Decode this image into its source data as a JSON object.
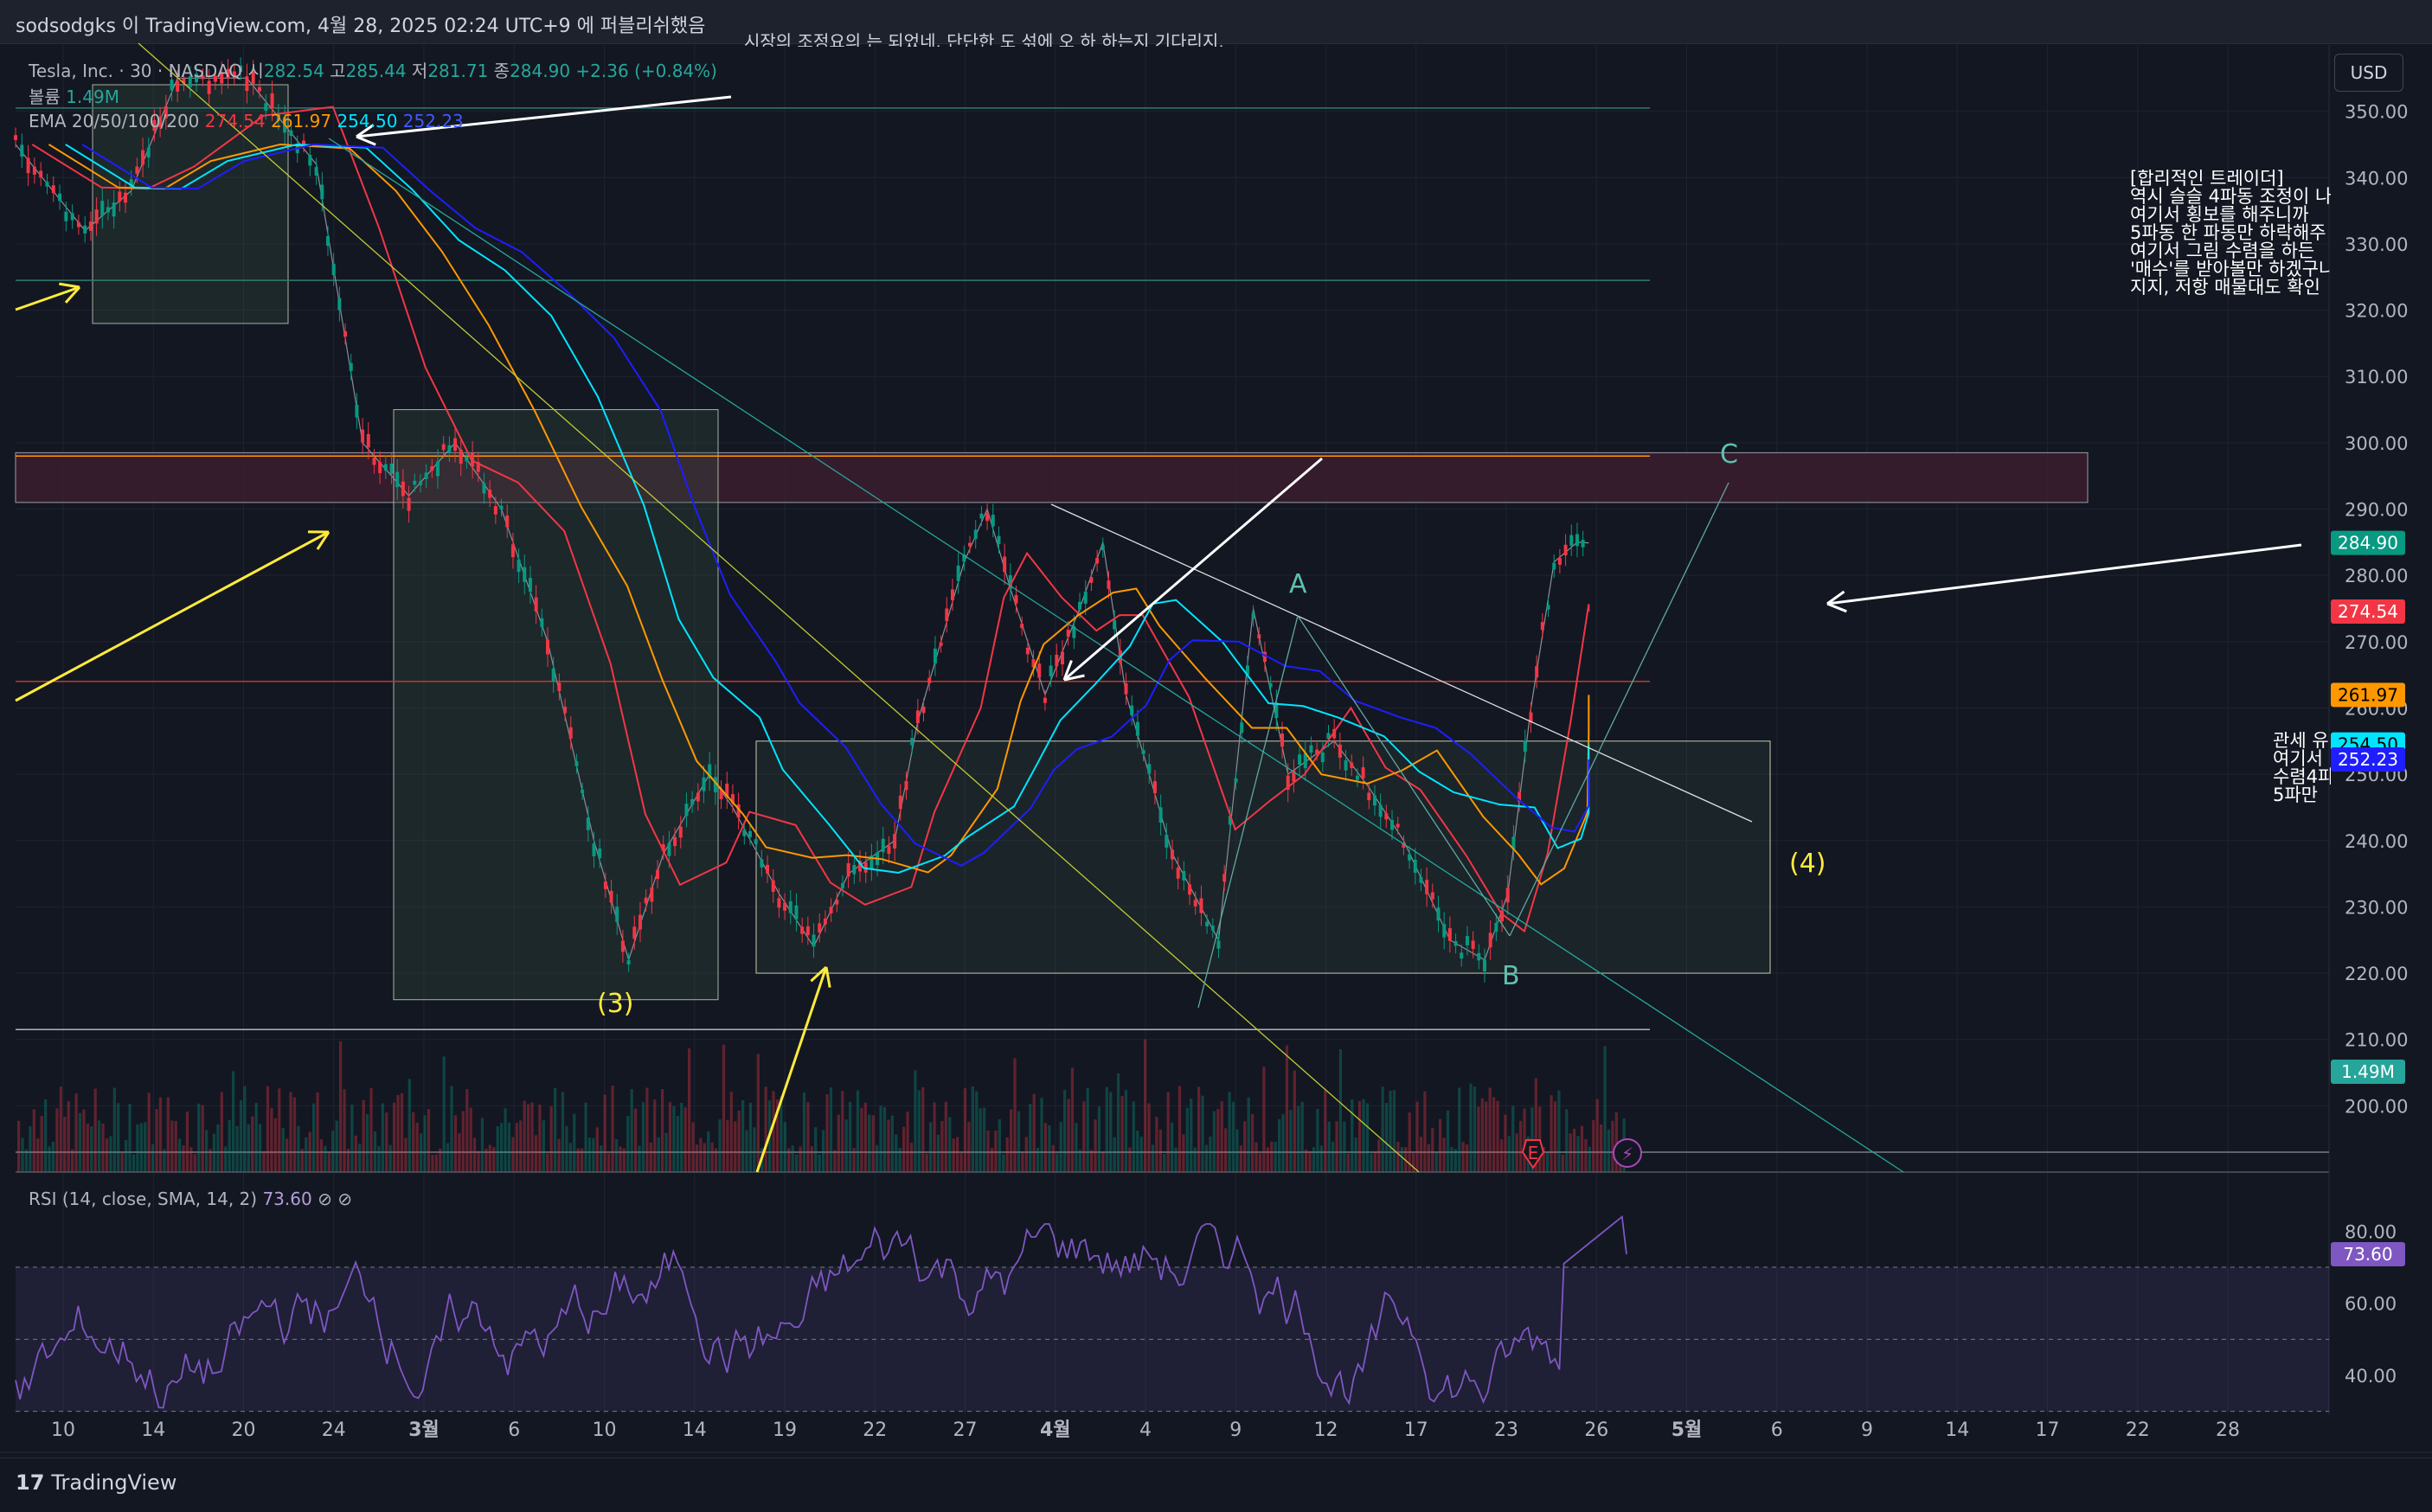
{
  "header": {
    "publisher_line": "sodsodgks 이 TradingView.com, 4월 28, 2025 02:24 UTC+9 에 퍼블리쉬했음"
  },
  "top_fragment": "시장의 조정요의 는 되었네. 단단한 도 섞에 오 하 하는지 기다리지.",
  "legend": {
    "symbol": "Tesla, Inc. · 30 · NASDAQ",
    "o_label": "시",
    "o_val": "282.54",
    "h_label": "고",
    "h_val": "285.44",
    "l_label": "저",
    "l_val": "281.71",
    "c_label": "종",
    "c_val": "284.90",
    "chg": "+2.36 (+0.84%)",
    "vol_label": "볼륨",
    "vol_val": "1.49M",
    "ema_label": "EMA 20/50/100/200",
    "ema20": "274.54",
    "ema50": "261.97",
    "ema100": "254.50",
    "ema200": "252.23",
    "rsi_label": "RSI (14, close, SMA, 14, 2)",
    "rsi_val": "73.60"
  },
  "currency": "USD",
  "note_right": "[합리적인 트레이더]\n역시 슬슬 4파동 조정이 나\n여기서 횡보를 해주니까 \n5파동 한 파동만 하락해주\n여기서 그림 수렴을 하든\n'매수'를 받아볼만 하겠구나\n지지, 저항 매물대도 확인",
  "note_mid": "관세 유\n여기서\n수렴4파\n5파만 ",
  "wave_labels": {
    "A": "A",
    "B": "B",
    "C": "C",
    "w3": "(3)",
    "w4": "(4)"
  },
  "event_icons": {
    "earnings": "E",
    "dividend": "⚡"
  },
  "footer_logo": "TradingView",
  "chart_data": {
    "type": "candlestick",
    "symbol": "Tesla, Inc.",
    "interval": "30",
    "exchange": "NASDAQ",
    "last_price": 284.9,
    "ylim": [
      190,
      360
    ],
    "y_ticks": [
      200,
      210,
      220,
      230,
      240,
      250,
      260,
      270,
      280,
      290,
      300,
      310,
      320,
      330,
      340,
      350
    ],
    "x_ticks": [
      "10",
      "14",
      "20",
      "24",
      "3월",
      "6",
      "10",
      "14",
      "19",
      "22",
      "27",
      "4월",
      "4",
      "9",
      "12",
      "17",
      "23",
      "26",
      "5월",
      "6",
      "9",
      "14",
      "17",
      "22",
      "28"
    ],
    "price_path": [
      [
        0,
        345
      ],
      [
        0.03,
        332
      ],
      [
        0.05,
        338
      ],
      [
        0.07,
        355
      ],
      [
        0.1,
        355
      ],
      [
        0.13,
        342
      ],
      [
        0.15,
        300
      ],
      [
        0.17,
        292
      ],
      [
        0.19,
        300
      ],
      [
        0.21,
        290
      ],
      [
        0.23,
        270
      ],
      [
        0.25,
        240
      ],
      [
        0.265,
        222
      ],
      [
        0.28,
        238
      ],
      [
        0.3,
        250
      ],
      [
        0.31,
        245
      ],
      [
        0.33,
        232
      ],
      [
        0.345,
        224
      ],
      [
        0.36,
        235
      ],
      [
        0.38,
        240
      ],
      [
        0.39,
        258
      ],
      [
        0.41,
        282
      ],
      [
        0.42,
        290
      ],
      [
        0.43,
        278
      ],
      [
        0.445,
        262
      ],
      [
        0.46,
        275
      ],
      [
        0.47,
        285
      ],
      [
        0.48,
        262
      ],
      [
        0.5,
        238
      ],
      [
        0.52,
        225
      ],
      [
        0.535,
        275
      ],
      [
        0.55,
        250
      ],
      [
        0.57,
        255
      ],
      [
        0.585,
        248
      ],
      [
        0.6,
        240
      ],
      [
        0.62,
        225
      ],
      [
        0.635,
        222
      ],
      [
        0.645,
        232
      ],
      [
        0.655,
        260
      ],
      [
        0.665,
        282
      ],
      [
        0.675,
        285
      ],
      [
        0.68,
        284.9
      ]
    ],
    "ema": [
      {
        "name": "EMA 20",
        "value": 274.54,
        "color": "#f23645"
      },
      {
        "name": "EMA 50",
        "value": 261.97,
        "color": "#ff9800"
      },
      {
        "name": "EMA 100",
        "value": 254.5,
        "color": "#00e5ff"
      },
      {
        "name": "EMA 200",
        "value": 252.23,
        "color": "#1e1eff"
      }
    ],
    "volume_last": "1.49M",
    "rsi": {
      "length": 14,
      "source": "close",
      "ma": "SMA",
      "value": 73.6,
      "levels": [
        30,
        50,
        70
      ],
      "ticks": [
        40,
        60,
        80
      ]
    },
    "price_labels": [
      {
        "value": 284.9,
        "label": "284.90",
        "bg": "#089981",
        "fg": "#ffffff"
      },
      {
        "value": 274.54,
        "label": "274.54",
        "bg": "#f23645",
        "fg": "#ffffff"
      },
      {
        "value": 261.97,
        "label": "261.97",
        "bg": "#ff9800",
        "fg": "#000000"
      },
      {
        "value": 254.5,
        "label": "254.50",
        "bg": "#00e5ff",
        "fg": "#000000"
      },
      {
        "value": 252.23,
        "label": "252.23",
        "bg": "#1e1eff",
        "fg": "#ffffff"
      }
    ],
    "volume_label": {
      "label": "1.49M",
      "bg": "#26a69a"
    },
    "rsi_label": {
      "label": "73.60",
      "bg": "#7e57c2"
    },
    "colors": {
      "up": "#089981",
      "down": "#f23645",
      "rsi": "#7e57c2"
    }
  }
}
